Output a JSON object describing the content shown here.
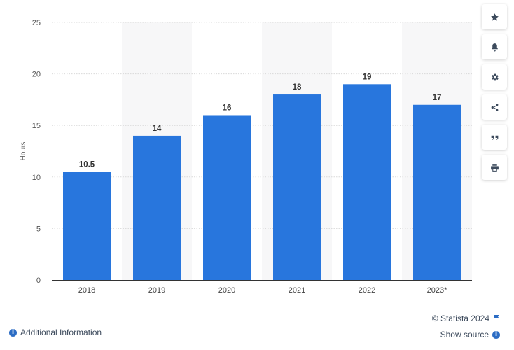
{
  "chart_data": {
    "type": "bar",
    "categories": [
      "2018",
      "2019",
      "2020",
      "2021",
      "2022",
      "2023*"
    ],
    "values": [
      10.5,
      14,
      16,
      18,
      19,
      17
    ],
    "data_labels": [
      "10.5",
      "14",
      "16",
      "18",
      "19",
      "17"
    ],
    "title": "",
    "xlabel": "",
    "ylabel": "Hours",
    "ylim": [
      0,
      25
    ],
    "yticks": [
      0,
      5,
      10,
      15,
      20,
      25
    ],
    "grid": true,
    "legend": "none",
    "bar_color": "#2876dd",
    "alt_band_color": "#f7f7f8"
  },
  "toolbar": {
    "items": [
      {
        "name": "favorite-button",
        "icon": "star-icon"
      },
      {
        "name": "notification-button",
        "icon": "bell-icon"
      },
      {
        "name": "settings-button",
        "icon": "gear-icon"
      },
      {
        "name": "share-button",
        "icon": "share-icon"
      },
      {
        "name": "cite-button",
        "icon": "quote-icon"
      },
      {
        "name": "print-button",
        "icon": "print-icon"
      }
    ]
  },
  "footer": {
    "copyright": "© Statista 2024",
    "show_source": "Show source",
    "additional_info": "Additional Information",
    "accent_color": "#2b6cc4"
  }
}
